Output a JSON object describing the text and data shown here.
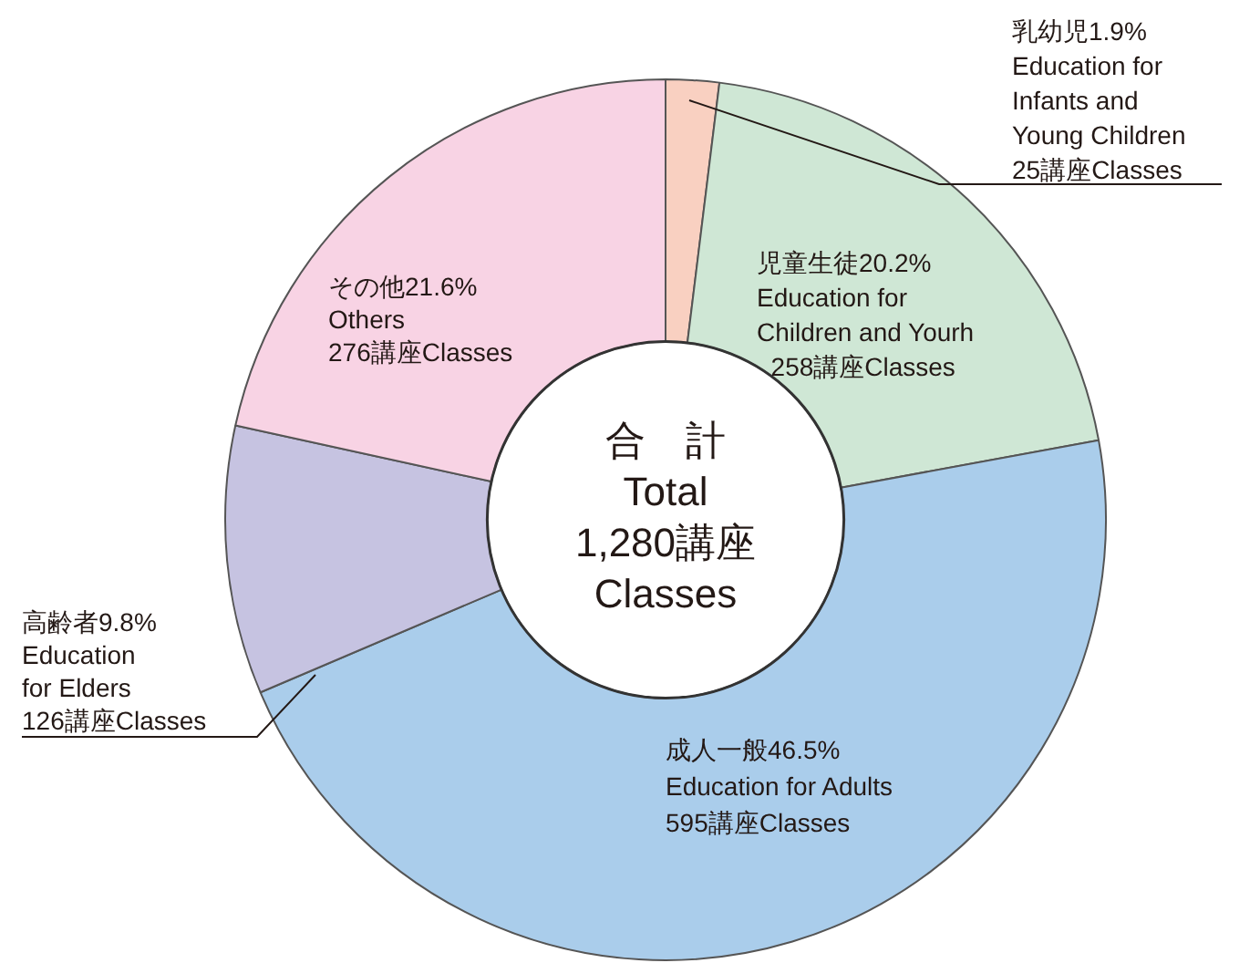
{
  "chart_data": {
    "type": "donut",
    "categories": [
      "乳幼児1.9%\nEducation for\nInfants and\nYoung Children",
      "児童生徒20.2%\nEducation for\nChildren and Yourh",
      "成人一般46.5%\nEducation for Adults",
      "高齢者9.8%\nEducation\nfor Elders",
      "その他21.6%\nOthers"
    ],
    "values": [
      25,
      258,
      595,
      126,
      276
    ],
    "value_labels": [
      "25講座Classes",
      "  258講座Classes",
      "595講座Classes",
      "126講座Classes",
      "276講座Classes"
    ],
    "colors": [
      "#f9d0c1",
      "#cfe7d5",
      "#aacdeb",
      "#c6c3e1",
      "#f8d3e4"
    ],
    "annotations": [
      "合　計\nTotal\n1,280講座\nClasses"
    ],
    "legend": false
  }
}
